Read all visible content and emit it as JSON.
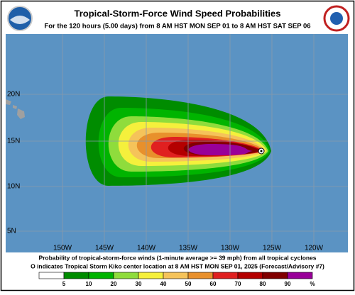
{
  "header": {
    "title": "Tropical-Storm-Force Wind Speed Probabilities",
    "subtitle": "For the 120 hours (5.00 days) from 8 AM HST MON SEP 01 to 8 AM HST SAT SEP 06"
  },
  "map": {
    "lat_labels": [
      "20N",
      "15N",
      "10N",
      "5N"
    ],
    "lon_labels": [
      "150W",
      "145W",
      "140W",
      "135W",
      "130W",
      "125W",
      "120W"
    ]
  },
  "footer": {
    "line1": "Probability of tropical-storm-force winds (1-minute average >= 39 mph) from all tropical cyclones",
    "line2": "O indicates Tropical Storm Kiko center location at 8 AM HST MON SEP 01, 2025 (Forecast/Advisory #7)"
  },
  "legend": {
    "labels": [
      "5",
      "10",
      "20",
      "30",
      "40",
      "50",
      "60",
      "70",
      "80",
      "90",
      "%"
    ],
    "colors": [
      "#ffffff",
      "#008c00",
      "#00b400",
      "#8fdc3c",
      "#f5f03c",
      "#f5c35a",
      "#e8902c",
      "#e02020",
      "#b40000",
      "#800000",
      "#990099"
    ]
  }
}
